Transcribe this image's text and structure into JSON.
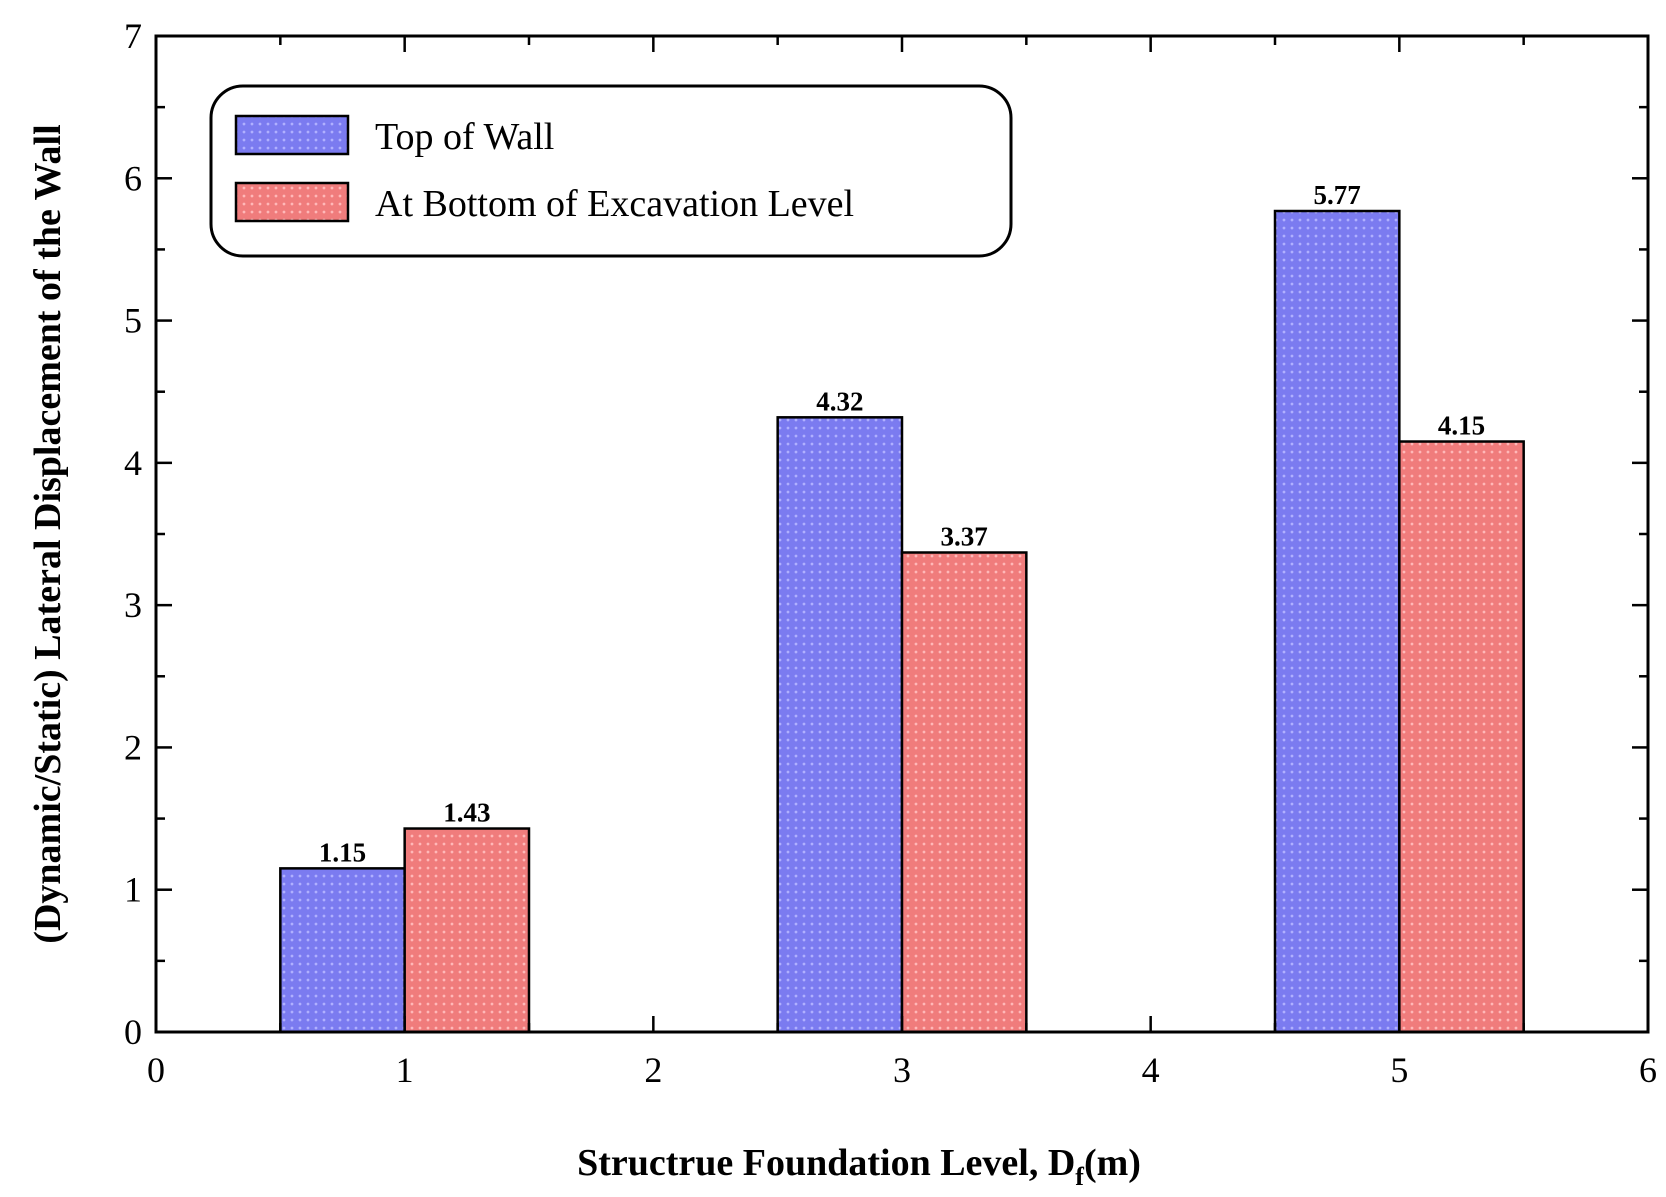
{
  "chart_data": {
    "type": "bar",
    "title": "",
    "xlabel": "Structrue Foundation Level, D",
    "xlabel_subscript": "f",
    "xlabel_suffix": "(m)",
    "ylabel": "(Dynamic/Static) Lateral Displacement of the Wall",
    "xlim": [
      0,
      6
    ],
    "ylim": [
      0,
      7
    ],
    "xticks": [
      0,
      1,
      2,
      3,
      4,
      5,
      6
    ],
    "yticks": [
      0,
      1,
      2,
      3,
      4,
      5,
      6,
      7
    ],
    "x": [
      1,
      3,
      5
    ],
    "legend_position": "top-left",
    "series": [
      {
        "name": "Top of Wall",
        "color": "#8080f0",
        "values": [
          1.15,
          4.32,
          5.77
        ]
      },
      {
        "name": "At Bottom of Excavation Level",
        "color": "#f08080",
        "values": [
          1.43,
          3.37,
          4.15
        ]
      }
    ],
    "data_labels": [
      [
        "1.15",
        "4.32",
        "5.77"
      ],
      [
        "1.43",
        "3.37",
        "4.15"
      ]
    ]
  }
}
